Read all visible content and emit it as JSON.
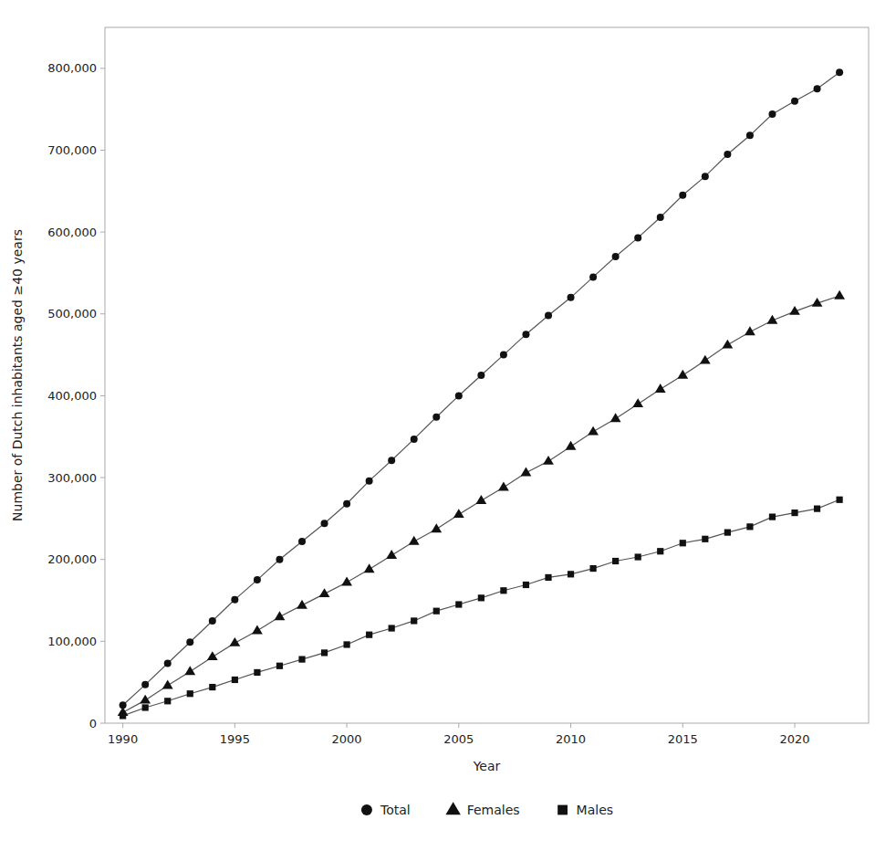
{
  "chart_data": {
    "type": "line",
    "xlabel": "Year",
    "ylabel": "Number of Dutch inhabitants aged ≥40 years",
    "x": [
      1990,
      1991,
      1992,
      1993,
      1994,
      1995,
      1996,
      1997,
      1998,
      1999,
      2000,
      2001,
      2002,
      2003,
      2004,
      2005,
      2006,
      2007,
      2008,
      2009,
      2010,
      2011,
      2012,
      2013,
      2014,
      2015,
      2016,
      2017,
      2018,
      2019,
      2020,
      2021,
      2022
    ],
    "series": [
      {
        "name": "Total",
        "color": "#555555",
        "marker": "circle",
        "values": [
          22000,
          47000,
          73000,
          99000,
          125000,
          151000,
          175000,
          200000,
          222000,
          244000,
          268000,
          296000,
          321000,
          347000,
          374000,
          400000,
          425000,
          450000,
          475000,
          498000,
          520000,
          545000,
          570000,
          593000,
          618000,
          645000,
          668000,
          695000,
          718000,
          744000,
          760000,
          775000,
          795000
        ]
      },
      {
        "name": "Females",
        "color": "#555555",
        "marker": "triangle",
        "values": [
          13000,
          28000,
          46000,
          63000,
          81000,
          98000,
          113000,
          130000,
          144000,
          158000,
          172000,
          188000,
          205000,
          222000,
          237000,
          255000,
          272000,
          288000,
          306000,
          320000,
          338000,
          356000,
          372000,
          390000,
          408000,
          425000,
          443000,
          462000,
          478000,
          492000,
          503000,
          513000,
          522000
        ]
      },
      {
        "name": "Males",
        "color": "#555555",
        "marker": "square",
        "values": [
          9000,
          19000,
          27000,
          36000,
          44000,
          53000,
          62000,
          70000,
          78000,
          86000,
          96000,
          108000,
          116000,
          125000,
          137000,
          145000,
          153000,
          162000,
          169000,
          178000,
          182000,
          189000,
          198000,
          203000,
          210000,
          220000,
          225000,
          233000,
          240000,
          252000,
          257000,
          262000,
          273000
        ]
      }
    ],
    "color": "#111111",
    "xlim": [
      1989.2,
      2023.3
    ],
    "ylim": [
      0,
      850000
    ],
    "xticks": [
      1990,
      1995,
      2000,
      2005,
      2010,
      2015,
      2020
    ],
    "yticks": [
      0,
      {
        "value": 100000,
        "label": "100,000"
      },
      {
        "value": 200000,
        "label": "200,000"
      },
      {
        "value": 300000,
        "label": "300,000"
      },
      {
        "value": 400000,
        "label": "400,000"
      },
      {
        "value": 500000,
        "label": "500,000"
      },
      {
        "value": 600000,
        "label": "600,000"
      },
      {
        "value": 700000,
        "label": "700,000"
      },
      {
        "value": 800000,
        "label": "800,000"
      }
    ],
    "grid": false,
    "legend": "bottom"
  }
}
